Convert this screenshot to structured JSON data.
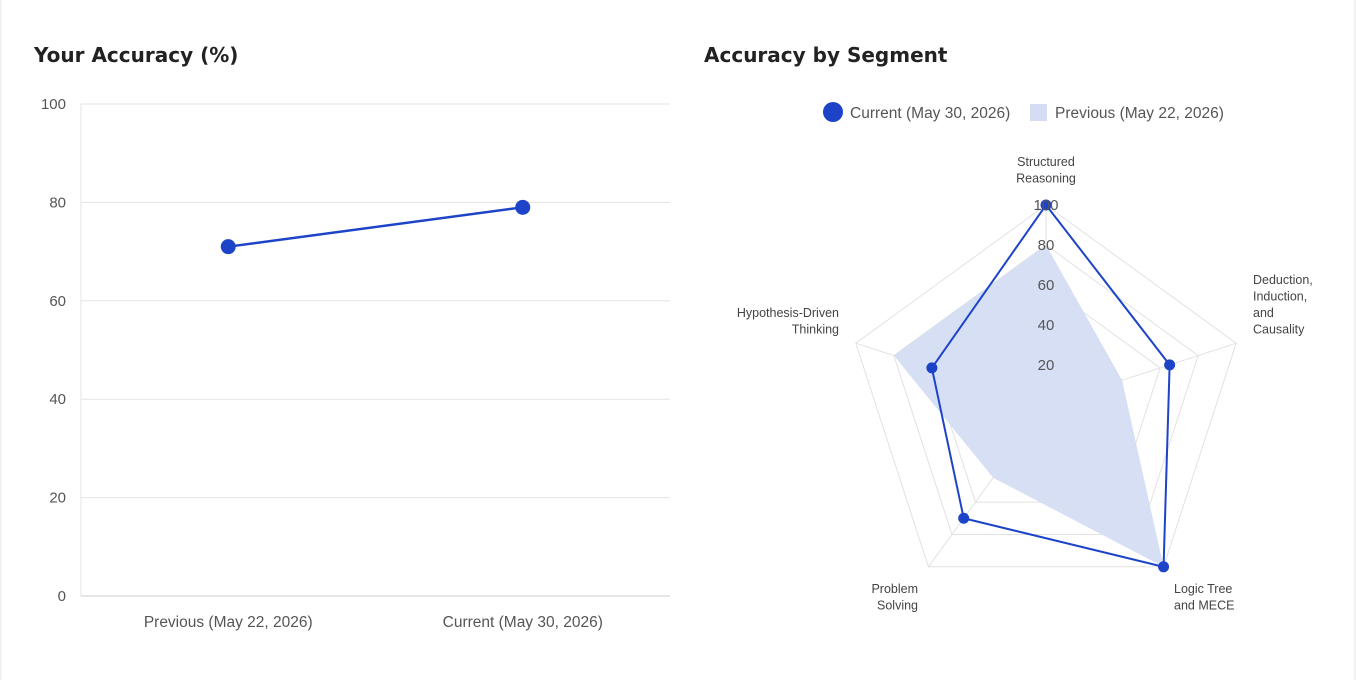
{
  "chart_data": [
    {
      "type": "line",
      "title": "Your Accuracy (%)",
      "categories": [
        "Previous (May 22, 2026)",
        "Current (May 30, 2026)"
      ],
      "series": [
        {
          "values": [
            71,
            79
          ]
        }
      ],
      "ylim": [
        0,
        100
      ],
      "yticks": [
        0,
        20,
        40,
        60,
        80,
        100
      ],
      "grid": true,
      "colors": {
        "line": "#1d44c8",
        "grid": "#e3e3e3"
      }
    },
    {
      "type": "radar",
      "title": "Accuracy by Segment",
      "axes": [
        [
          "Structured",
          "Reasoning"
        ],
        [
          "Deduction,",
          "Induction,",
          "and",
          "Causality"
        ],
        [
          "Logic Tree",
          "and MECE"
        ],
        [
          "Problem",
          "Solving"
        ],
        [
          "Hypothesis-Driven",
          "Thinking"
        ]
      ],
      "rlim": [
        0,
        100
      ],
      "rticks": [
        20,
        40,
        60,
        80,
        100
      ],
      "series": [
        {
          "name": "Current (May 30, 2026)",
          "values": [
            100,
            65,
            100,
            70,
            60
          ],
          "style": "line",
          "color": "#1d44c8"
        },
        {
          "name": "Previous (May 22, 2026)",
          "values": [
            80,
            40,
            100,
            45,
            80
          ],
          "style": "area",
          "color": "#d4ddf3"
        }
      ],
      "legend": "top"
    }
  ]
}
